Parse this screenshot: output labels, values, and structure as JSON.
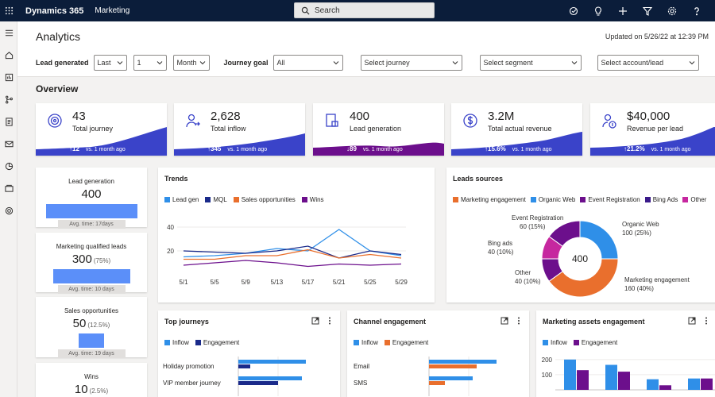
{
  "topbar": {
    "app_name": "Dynamics 365",
    "area": "Marketing",
    "search_placeholder": "Search"
  },
  "header": {
    "title": "Analytics",
    "updated": "Updated on 5/26/22 at 12:39 PM",
    "filters": {
      "lead_generated_label": "Lead generated",
      "period": "Last",
      "count": "1",
      "unit": "Month",
      "journey_goal_label": "Journey goal",
      "journey_goal": "All",
      "journey_placeholder": "Select journey",
      "segment_placeholder": "Select segment",
      "account_placeholder": "Select account/lead"
    }
  },
  "overview": {
    "title": "Overview",
    "kpis": [
      {
        "value": "43",
        "label": "Total journey",
        "delta": "12",
        "delta_note": "vs. 1 month ago",
        "icon": "target-icon",
        "color": "#3a43c9"
      },
      {
        "value": "2,628",
        "label": "Total inflow",
        "delta": "345",
        "delta_note": "vs. 1 month ago",
        "icon": "person-icon",
        "color": "#3a43c9"
      },
      {
        "value": "400",
        "label": "Lead generation",
        "delta": "89",
        "delta_note": "vs. 1 month ago",
        "icon": "lead-icon",
        "color": "#6c0f8c"
      },
      {
        "value": "3.2M",
        "label": "Total actual revenue",
        "delta": "15.6%",
        "delta_note": "vs. 1 month ago",
        "icon": "dollar-icon",
        "color": "#3a43c9"
      },
      {
        "value": "$40,000",
        "label": "Revenue per lead",
        "delta": "21.2%",
        "delta_note": "vs. 1 month ago",
        "icon": "person-money-icon",
        "color": "#3a43c9"
      }
    ]
  },
  "funnel": [
    {
      "title": "Lead generation",
      "value": "400",
      "pct": "",
      "avg": "Avg. time: 17days"
    },
    {
      "title": "Marketing qualified leads",
      "value": "300",
      "pct": "(75%)",
      "avg": "Avg. time: 10 days"
    },
    {
      "title": "Sales opportunities",
      "value": "50",
      "pct": "(12.5%)",
      "avg": "Avg. time: 19 days"
    },
    {
      "title": "Wins",
      "value": "10",
      "pct": "(2.5%)",
      "avg": ""
    }
  ],
  "trends": {
    "title": "Trends",
    "legend": [
      {
        "name": "Lead gen",
        "color": "#2f8fe8"
      },
      {
        "name": "MQL",
        "color": "#1a2a8a"
      },
      {
        "name": "Sales opportunities",
        "color": "#e96f2d"
      },
      {
        "name": "Wins",
        "color": "#6c0f8c"
      }
    ],
    "y_ticks": [
      "40",
      "20"
    ],
    "x_ticks": [
      "5/1",
      "5/5",
      "5/9",
      "5/13",
      "5/17",
      "5/21",
      "5/25",
      "5/29"
    ]
  },
  "chart_data": [
    {
      "type": "line",
      "title": "Trends",
      "x": [
        "5/1",
        "5/5",
        "5/9",
        "5/13",
        "5/17",
        "5/21",
        "5/25",
        "5/29"
      ],
      "ylim": [
        0,
        50
      ],
      "series": [
        {
          "name": "Lead gen",
          "values": [
            15,
            16,
            18,
            22,
            20,
            38,
            20,
            16
          ]
        },
        {
          "name": "MQL",
          "values": [
            20,
            19,
            18,
            20,
            24,
            14,
            20,
            17
          ]
        },
        {
          "name": "Sales opportunities",
          "values": [
            13,
            13,
            16,
            16,
            21,
            14,
            17,
            14
          ]
        },
        {
          "name": "Wins",
          "values": [
            8,
            10,
            12,
            10,
            7,
            9,
            8,
            9
          ]
        }
      ]
    },
    {
      "type": "pie",
      "title": "Leads sources",
      "center_label": "400",
      "slices": [
        {
          "name": "Organic Web",
          "value": 100,
          "label": "100 (25%)",
          "color": "#2f8fe8"
        },
        {
          "name": "Marketing engagement",
          "value": 160,
          "label": "160 (40%)",
          "color": "#e96f2d"
        },
        {
          "name": "Other",
          "value": 40,
          "label": "40 (10%)",
          "color": "#6c0f8c"
        },
        {
          "name": "Bing ads",
          "value": 40,
          "label": "40 (10%)",
          "color": "#c6279f"
        },
        {
          "name": "Event Registration",
          "value": 60,
          "label": "60 (15%)",
          "color": "#6c0f8c"
        }
      ]
    },
    {
      "type": "bar",
      "title": "Top journeys",
      "categories": [
        "Holiday promotion",
        "VIP member journey"
      ],
      "series": [
        {
          "name": "Inflow",
          "values": [
            85,
            80
          ]
        },
        {
          "name": "Engagement",
          "values": [
            15,
            50
          ]
        }
      ]
    },
    {
      "type": "bar",
      "title": "Channel engagement",
      "categories": [
        "Email",
        "SMS"
      ],
      "series": [
        {
          "name": "Inflow",
          "values": [
            85,
            55
          ]
        },
        {
          "name": "Engagement",
          "values": [
            60,
            20
          ]
        }
      ]
    },
    {
      "type": "bar",
      "title": "Marketing assets engagement",
      "categories": [
        "",
        "",
        "",
        ""
      ],
      "ylim": [
        0,
        220
      ],
      "series": [
        {
          "name": "Inflow",
          "values": [
            200,
            165,
            70,
            75
          ]
        },
        {
          "name": "Engagement",
          "values": [
            130,
            120,
            30,
            75
          ]
        }
      ]
    }
  ],
  "leads_sources": {
    "title": "Leads sources",
    "legend": [
      {
        "name": "Marketing engagement",
        "color": "#e96f2d"
      },
      {
        "name": "Organic Web",
        "color": "#2f8fe8"
      },
      {
        "name": "Event Registration",
        "color": "#6c0f8c"
      },
      {
        "name": "Bing Ads",
        "color": "#3a1a8a"
      },
      {
        "name": "Other",
        "color": "#c6279f"
      }
    ],
    "labels": {
      "event_registration": "Event Registration",
      "event_registration_val": "60 (15%)",
      "organic_web": "Organic Web",
      "organic_web_val": "100 (25%)",
      "bing_ads": "Bing ads",
      "bing_ads_val": "40 (10%)",
      "other": "Other",
      "other_val": "40 (10%)",
      "marketing": "Marketing engagement",
      "marketing_val": "160 (40%)"
    },
    "center": "400"
  },
  "top_journeys": {
    "title": "Top journeys",
    "legend": [
      {
        "name": "Inflow",
        "color": "#2f8fe8"
      },
      {
        "name": "Engagement",
        "color": "#1a2a8a"
      }
    ],
    "rows": [
      "Holiday promotion",
      "VIP member journey"
    ]
  },
  "channel": {
    "title": "Channel engagement",
    "legend": [
      {
        "name": "Inflow",
        "color": "#2f8fe8"
      },
      {
        "name": "Engagement",
        "color": "#e96f2d"
      }
    ],
    "rows": [
      "Email",
      "SMS"
    ]
  },
  "assets": {
    "title": "Marketing assets engagement",
    "legend": [
      {
        "name": "Inflow",
        "color": "#2f8fe8"
      },
      {
        "name": "Engagement",
        "color": "#6c0f8c"
      }
    ],
    "y_ticks": [
      "200",
      "100"
    ]
  }
}
